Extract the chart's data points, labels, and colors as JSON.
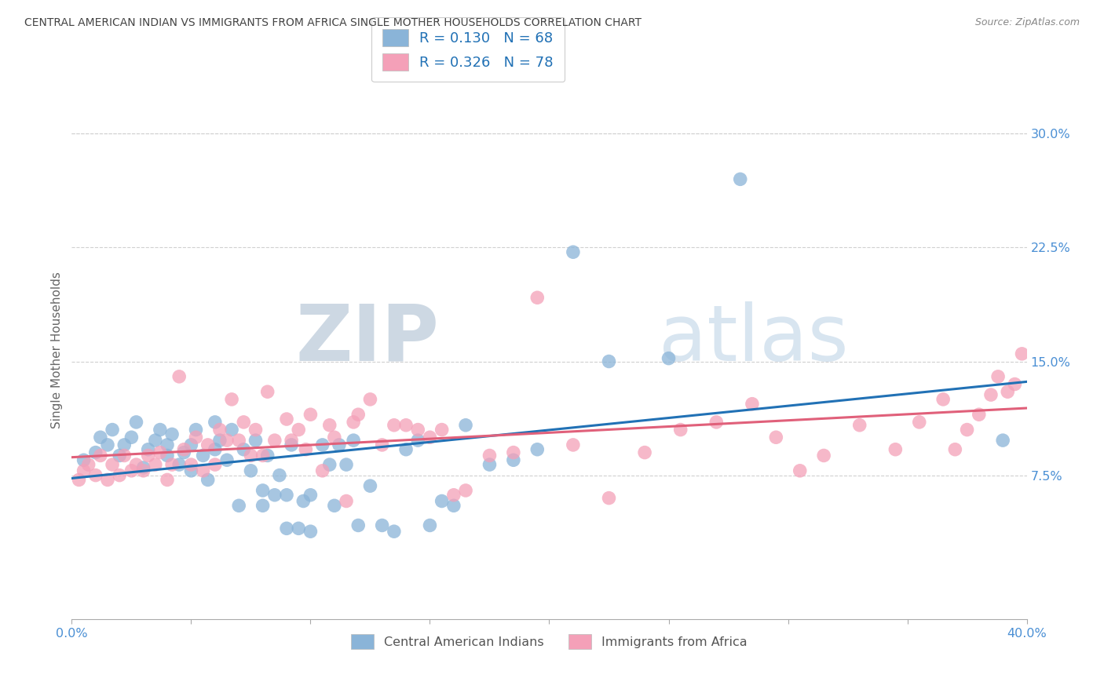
{
  "title": "CENTRAL AMERICAN INDIAN VS IMMIGRANTS FROM AFRICA SINGLE MOTHER HOUSEHOLDS CORRELATION CHART",
  "source": "Source: ZipAtlas.com",
  "ylabel": "Single Mother Households",
  "ytick_labels": [
    "7.5%",
    "15.0%",
    "22.5%",
    "30.0%"
  ],
  "ytick_values": [
    0.075,
    0.15,
    0.225,
    0.3
  ],
  "xlim": [
    0.0,
    0.4
  ],
  "ylim": [
    -0.02,
    0.335
  ],
  "blue_R": 0.13,
  "blue_N": 68,
  "pink_R": 0.326,
  "pink_N": 78,
  "blue_color": "#8ab4d8",
  "pink_color": "#f4a0b8",
  "blue_line_color": "#2171b5",
  "pink_line_color": "#e0607a",
  "legend_label_blue": "Central American Indians",
  "legend_label_pink": "Immigrants from Africa",
  "blue_x": [
    0.005,
    0.01,
    0.012,
    0.015,
    0.017,
    0.02,
    0.022,
    0.025,
    0.027,
    0.03,
    0.032,
    0.035,
    0.037,
    0.04,
    0.04,
    0.042,
    0.045,
    0.047,
    0.05,
    0.05,
    0.052,
    0.055,
    0.057,
    0.06,
    0.06,
    0.062,
    0.065,
    0.067,
    0.07,
    0.072,
    0.075,
    0.077,
    0.08,
    0.08,
    0.082,
    0.085,
    0.087,
    0.09,
    0.09,
    0.092,
    0.095,
    0.097,
    0.1,
    0.1,
    0.105,
    0.108,
    0.11,
    0.112,
    0.115,
    0.118,
    0.12,
    0.125,
    0.13,
    0.135,
    0.14,
    0.145,
    0.15,
    0.155,
    0.16,
    0.165,
    0.175,
    0.185,
    0.195,
    0.21,
    0.225,
    0.25,
    0.28,
    0.39
  ],
  "blue_y": [
    0.085,
    0.09,
    0.1,
    0.095,
    0.105,
    0.088,
    0.095,
    0.1,
    0.11,
    0.08,
    0.092,
    0.098,
    0.105,
    0.088,
    0.095,
    0.102,
    0.082,
    0.09,
    0.078,
    0.095,
    0.105,
    0.088,
    0.072,
    0.092,
    0.11,
    0.098,
    0.085,
    0.105,
    0.055,
    0.092,
    0.078,
    0.098,
    0.055,
    0.065,
    0.088,
    0.062,
    0.075,
    0.04,
    0.062,
    0.095,
    0.04,
    0.058,
    0.038,
    0.062,
    0.095,
    0.082,
    0.055,
    0.095,
    0.082,
    0.098,
    0.042,
    0.068,
    0.042,
    0.038,
    0.092,
    0.098,
    0.042,
    0.058,
    0.055,
    0.108,
    0.082,
    0.085,
    0.092,
    0.222,
    0.15,
    0.152,
    0.27,
    0.098
  ],
  "pink_x": [
    0.003,
    0.005,
    0.007,
    0.01,
    0.012,
    0.015,
    0.017,
    0.02,
    0.022,
    0.025,
    0.027,
    0.03,
    0.032,
    0.035,
    0.037,
    0.04,
    0.042,
    0.045,
    0.047,
    0.05,
    0.052,
    0.055,
    0.057,
    0.06,
    0.062,
    0.065,
    0.067,
    0.07,
    0.072,
    0.075,
    0.077,
    0.08,
    0.082,
    0.085,
    0.09,
    0.092,
    0.095,
    0.098,
    0.1,
    0.105,
    0.108,
    0.11,
    0.115,
    0.118,
    0.12,
    0.125,
    0.13,
    0.135,
    0.14,
    0.145,
    0.15,
    0.155,
    0.16,
    0.165,
    0.175,
    0.185,
    0.195,
    0.21,
    0.225,
    0.24,
    0.255,
    0.27,
    0.285,
    0.295,
    0.305,
    0.315,
    0.33,
    0.345,
    0.355,
    0.365,
    0.37,
    0.375,
    0.38,
    0.385,
    0.388,
    0.392,
    0.395,
    0.398
  ],
  "pink_y": [
    0.072,
    0.078,
    0.082,
    0.075,
    0.088,
    0.072,
    0.082,
    0.075,
    0.088,
    0.078,
    0.082,
    0.078,
    0.088,
    0.082,
    0.09,
    0.072,
    0.082,
    0.14,
    0.092,
    0.082,
    0.1,
    0.078,
    0.095,
    0.082,
    0.105,
    0.098,
    0.125,
    0.098,
    0.11,
    0.088,
    0.105,
    0.088,
    0.13,
    0.098,
    0.112,
    0.098,
    0.105,
    0.092,
    0.115,
    0.078,
    0.108,
    0.1,
    0.058,
    0.11,
    0.115,
    0.125,
    0.095,
    0.108,
    0.108,
    0.105,
    0.1,
    0.105,
    0.062,
    0.065,
    0.088,
    0.09,
    0.192,
    0.095,
    0.06,
    0.09,
    0.105,
    0.11,
    0.122,
    0.1,
    0.078,
    0.088,
    0.108,
    0.092,
    0.11,
    0.125,
    0.092,
    0.105,
    0.115,
    0.128,
    0.14,
    0.13,
    0.135,
    0.155
  ],
  "watermark_zip": "ZIP",
  "watermark_atlas": "atlas",
  "background_color": "#ffffff",
  "grid_color": "#d0d0d0",
  "title_color": "#444444",
  "tick_color": "#4a8fd4",
  "ylabel_color": "#666666"
}
